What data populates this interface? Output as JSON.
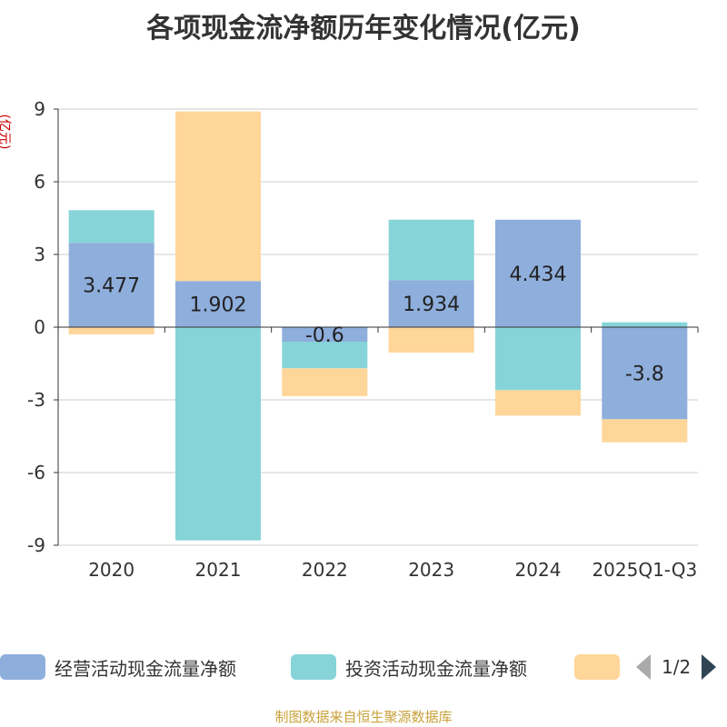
{
  "chart_data": {
    "type": "bar",
    "stacked": true,
    "title": "各项现金流净额历年变化情况(亿元)",
    "ylabel": "(亿元)",
    "categories": [
      "2020",
      "2021",
      "2022",
      "2023",
      "2024",
      "2025Q1-Q3"
    ],
    "ylim": [
      -9,
      9
    ],
    "yticks": [
      -9,
      -6,
      -3,
      0,
      3,
      6,
      9
    ],
    "grid": true,
    "legend_position": "bottom",
    "series": [
      {
        "name": "经营活动现金流量净额",
        "color": "#8eaedc",
        "values": [
          3.477,
          1.902,
          -0.6,
          1.934,
          4.434,
          -3.8
        ],
        "labels": [
          "3.477",
          "1.902",
          "-0.6",
          "1.934",
          "4.434",
          "-3.8"
        ]
      },
      {
        "name": "投资活动现金流量净额",
        "color": "#86d4d8",
        "values": [
          1.35,
          -8.8,
          -1.1,
          2.5,
          -2.6,
          0.2
        ]
      },
      {
        "name": "",
        "color": "#ffd699",
        "values": [
          -0.3,
          7.0,
          -1.15,
          -1.05,
          -1.05,
          -0.95
        ]
      }
    ]
  },
  "legend": {
    "items": [
      {
        "label": "经营活动现金流量净额",
        "color": "#8eaedc"
      },
      {
        "label": "投资活动现金流量净额",
        "color": "#86d4d8"
      },
      {
        "label": "",
        "color": "#ffd699"
      }
    ],
    "page": "1/2"
  },
  "source": "制图数据来自恒生聚源数据库"
}
